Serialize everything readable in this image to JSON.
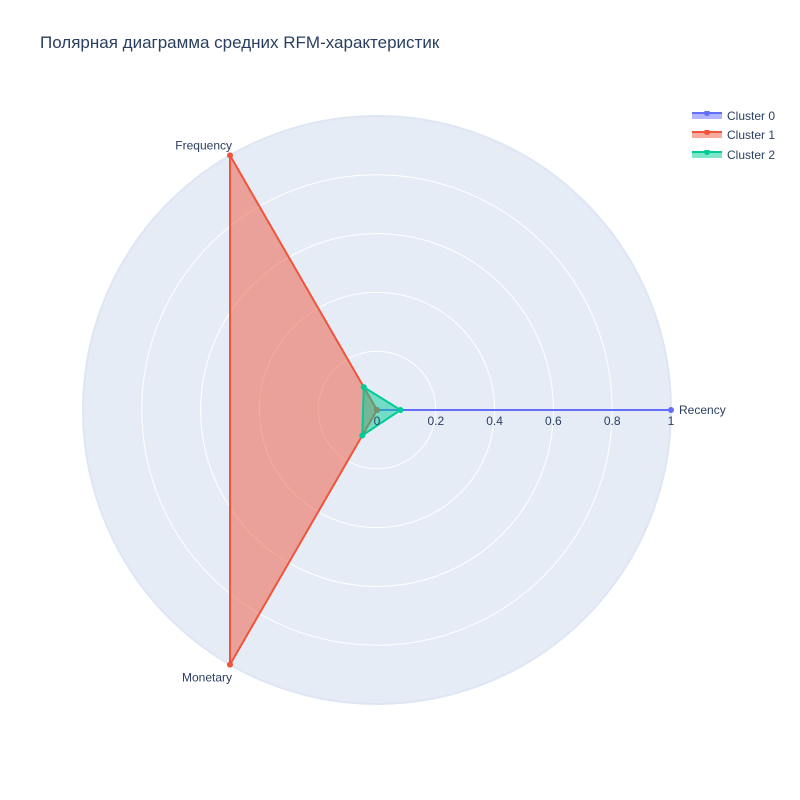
{
  "title": "Полярная диаграмма средних RFM-характеристик",
  "colors": {
    "background": "#e5ecf6",
    "grid": "#ffffff",
    "outer_ring": "#dfe6f3",
    "text": "#2a3f5f"
  },
  "chart_data": {
    "type": "radar",
    "title": "Полярная диаграмма средних RFM-характеристик",
    "categories": [
      "Recency",
      "Frequency",
      "Monetary"
    ],
    "radial_range": [
      0,
      1
    ],
    "radial_ticks": [
      "0",
      "0.2",
      "0.4",
      "0.6",
      "0.8",
      "1"
    ],
    "radial_tick_values": [
      0,
      0.2,
      0.4,
      0.6,
      0.8,
      1
    ],
    "grid": true,
    "legend_position": "top-right",
    "series": [
      {
        "name": "Cluster 0",
        "values": [
          1.0,
          0.0,
          0.0
        ],
        "color": "#636efa"
      },
      {
        "name": "Cluster 1",
        "values": [
          0.0,
          1.0,
          1.0
        ],
        "color": "#ef553b"
      },
      {
        "name": "Cluster 2",
        "values": [
          0.08,
          0.09,
          0.1
        ],
        "color": "#00cc96"
      }
    ]
  },
  "legend": {
    "items": [
      "Cluster 0",
      "Cluster 1",
      "Cluster 2"
    ]
  }
}
